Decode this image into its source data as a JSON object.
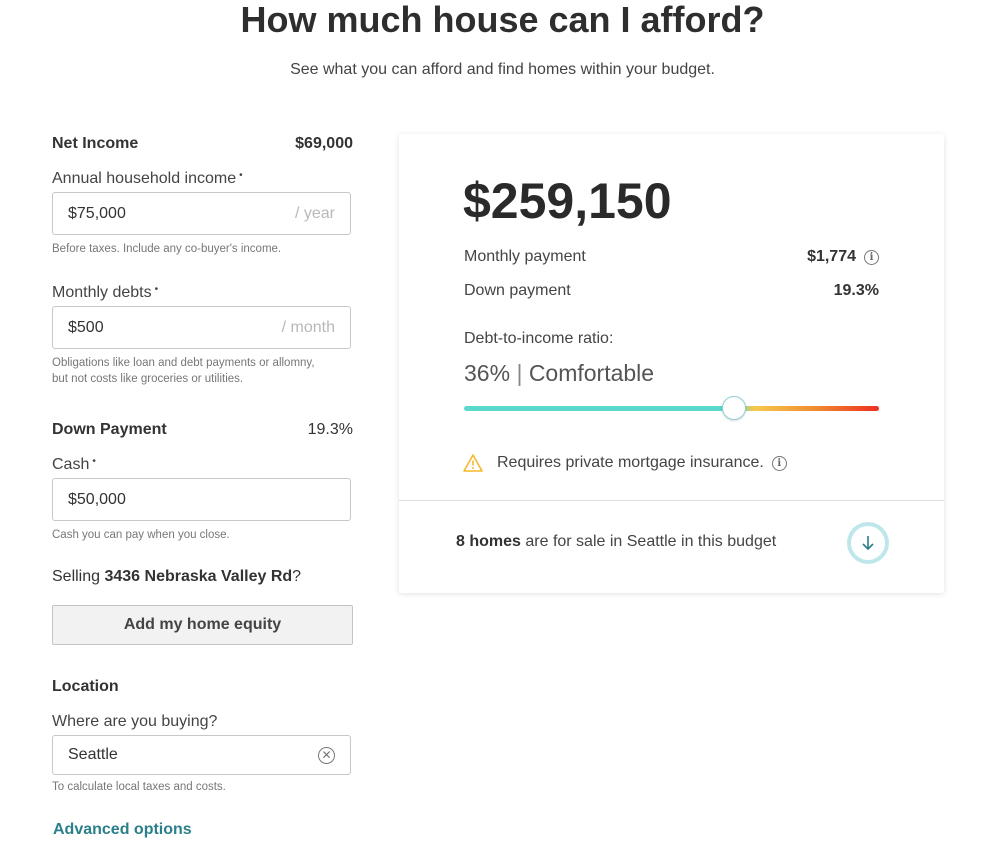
{
  "header": {
    "title": "How much house can I afford?",
    "subtitle": "See what you can afford and find homes within your budget."
  },
  "form": {
    "net_income": {
      "label": "Net Income",
      "value": "$69,000"
    },
    "annual_income": {
      "label": "Annual household income",
      "required_mark": "•",
      "value": "$75,000",
      "suffix": "/ year",
      "help": "Before taxes. Include any co-buyer's income."
    },
    "monthly_debts": {
      "label": "Monthly debts",
      "required_mark": "•",
      "value": "$500",
      "suffix": "/ month",
      "help_line1": "Obligations like loan and debt payments or allomny,",
      "help_line2": "but not costs like groceries or utilities."
    },
    "down_payment": {
      "label": "Down Payment",
      "value": "19.3%"
    },
    "cash": {
      "label": "Cash",
      "required_mark": "•",
      "value": "$50,000",
      "help": "Cash you can pay when you close."
    },
    "selling": {
      "prefix": "Selling ",
      "address": "3436 Nebraska Valley Rd",
      "suffix": "?"
    },
    "equity_button": "Add my home equity",
    "location": {
      "section": "Location",
      "label": "Where are you buying?",
      "value": "Seattle",
      "help": "To calculate local taxes and costs."
    },
    "advanced_link": "Advanced options"
  },
  "result": {
    "amount": "$259,150",
    "monthly_payment_label": "Monthly payment",
    "monthly_payment_value": "$1,774",
    "down_payment_label": "Down payment",
    "down_payment_value": "19.3%",
    "dti_label": "Debt-to-income ratio:",
    "dti_percent": "36%",
    "dti_separator": "|",
    "dti_status": "Comfortable",
    "dti_slider_level_percent": 36,
    "pmi_text": "Requires private mortgage insurance.",
    "homes_count": "8 homes",
    "homes_text": " are for sale in Seattle in this budget"
  },
  "colors": {
    "accent_teal": "#2a7f8a",
    "slider_comfortable": "#5ad8cc",
    "slider_high": "#ee2f22",
    "warning": "#f5b82e"
  },
  "icons": [
    "info-icon",
    "warning-icon",
    "clear-icon",
    "arrow-down-icon"
  ]
}
